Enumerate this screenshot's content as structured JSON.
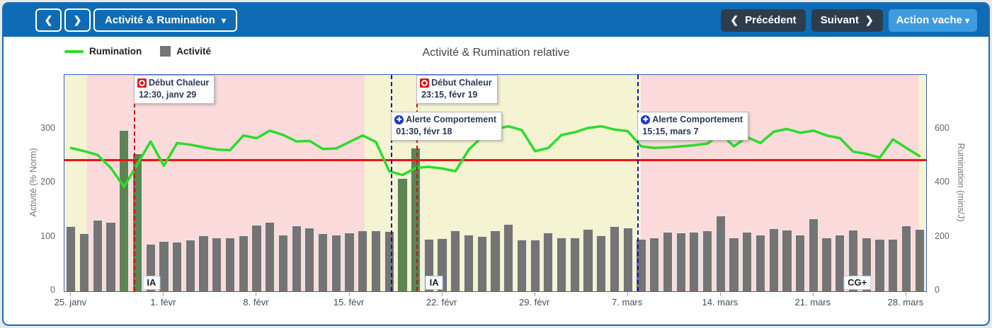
{
  "colors": {
    "topbar_blue": "#0f6cb4",
    "card_border_blue": "#1c6bb0",
    "action_button_blue": "#3e9be0",
    "dark_button_slate": "#2e3d4e",
    "plot_border_blue": "#3c5ec5",
    "bar_gray": "#747474",
    "bar_highlight_green": "#5d8452",
    "line_green": "#2bdc2b",
    "threshold_red": "#ed1313",
    "region_pink": "#fadada",
    "region_yellow": "#f5f4d2",
    "heat_event_red": "#cc1111",
    "behavior_event_blue": "#1111bb"
  },
  "toolbar": {
    "view_selector": "Activité & Rumination",
    "previous": "Précédent",
    "next": "Suivant",
    "action": "Action vache",
    "icons": {
      "prev": "❮",
      "next": "❯",
      "caret": "▾"
    }
  },
  "legend": [
    {
      "label": "Rumination",
      "type": "line",
      "color": "#2bdc2b"
    },
    {
      "label": "Activité",
      "type": "bar",
      "color": "#757575"
    }
  ],
  "chart_data": {
    "type": "bar",
    "title": "Activité & Rumination relative",
    "x_tick_labels": [
      "25. janv",
      "1. févr",
      "8. févr",
      "15. févr",
      "22. févr",
      "29. févr",
      "7. mars",
      "14. mars",
      "21. mars",
      "28. mars"
    ],
    "x_tick_day_indices": [
      0,
      7,
      14,
      21,
      28,
      35,
      42,
      49,
      56,
      63
    ],
    "days_span": "25 janv – 29 mars (65 jours)",
    "left_axis": {
      "label": "Activité (% Norm)",
      "ticks": [
        0,
        100,
        200,
        300
      ],
      "max": 400
    },
    "right_axis": {
      "label": "Rumination (mins/J)",
      "ticks": [
        0,
        200,
        400,
        600
      ],
      "max": 800
    },
    "series": [
      {
        "name": "Activité",
        "type": "bar",
        "axis": "left",
        "values": [
          120,
          107,
          132,
          128,
          298,
          255,
          87,
          93,
          91,
          95,
          103,
          100,
          99,
          103,
          123,
          128,
          105,
          122,
          118,
          107,
          105,
          108,
          112,
          113,
          111,
          209,
          265,
          97,
          98,
          113,
          105,
          102,
          112,
          124,
          96,
          95,
          108,
          100,
          100,
          115,
          103,
          120,
          118,
          97,
          100,
          110,
          108,
          110,
          113,
          140,
          100,
          110,
          104,
          117,
          114,
          105,
          135,
          100,
          104,
          114,
          100,
          97,
          97,
          122,
          115
        ],
        "highlight_indices": [
          4,
          5,
          25,
          26
        ]
      },
      {
        "name": "Rumination",
        "type": "line",
        "axis": "right",
        "values": [
          530,
          518,
          504,
          456,
          386,
          470,
          554,
          464,
          548,
          542,
          532,
          524,
          522,
          576,
          566,
          594,
          578,
          554,
          556,
          526,
          528,
          552,
          576,
          552,
          444,
          430,
          456,
          460,
          454,
          444,
          524,
          570,
          600,
          610,
          596,
          518,
          530,
          578,
          588,
          604,
          610,
          598,
          592,
          536,
          530,
          532,
          536,
          540,
          546,
          582,
          536,
          570,
          548,
          590,
          600,
          586,
          594,
          576,
          566,
          516,
          508,
          494,
          562,
          530,
          500
        ]
      }
    ],
    "threshold_line": {
      "axis": "right",
      "value": 490
    },
    "regions": [
      {
        "from": 0,
        "to": 2.6,
        "color": "#f5f4d2"
      },
      {
        "from": 2.6,
        "to": 34.8,
        "color": "#fadada"
      },
      {
        "from": 34.8,
        "to": 66.9,
        "color": "#f5f4d2"
      },
      {
        "from": 66.9,
        "to": 99.2,
        "color": "#fadada"
      },
      {
        "from": 99.2,
        "to": 100,
        "color": "#f5f4d2"
      }
    ],
    "events": [
      {
        "type": "heat",
        "icon": "heat-target-icon",
        "title": "Début Chaleur",
        "time": "12:30, janv 29",
        "x_percent": 8.05,
        "row": 0,
        "line_color": "#cc1111"
      },
      {
        "type": "behavior",
        "icon": "medical-plus-icon",
        "title": "Alerte Comportement",
        "time": "01:30, févr 18",
        "x_percent": 37.9,
        "row": 1,
        "line_color": "#1111bb"
      },
      {
        "type": "heat",
        "icon": "heat-target-icon",
        "title": "Début Chaleur",
        "time": "23:15, févr 19",
        "x_percent": 40.85,
        "row": 0,
        "line_color": "#cc1111"
      },
      {
        "type": "behavior",
        "icon": "medical-plus-icon",
        "title": "Alerte Comportement",
        "time": "15:15, mars 7",
        "x_percent": 66.5,
        "row": 1,
        "line_color": "#1111bb"
      }
    ],
    "bottom_labels": [
      {
        "text": "IA",
        "x_percent": 10.1
      },
      {
        "text": "IA",
        "x_percent": 42.9
      },
      {
        "text": "CG+",
        "x_percent": 92.0
      }
    ]
  }
}
